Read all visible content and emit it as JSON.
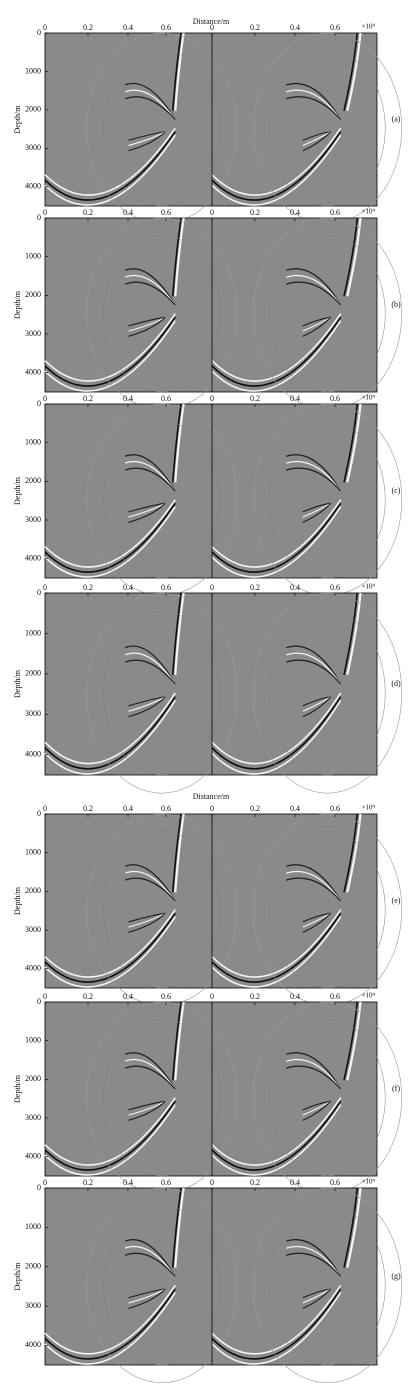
{
  "groups": [
    {
      "x_title": "Distance/m",
      "panels": [
        {
          "label": "(a)",
          "y_title": "Depth/m",
          "x_scale": "×10⁴",
          "x_ticks": [
            "0",
            "0.2",
            "0.4",
            "0.6",
            "0",
            "0.2",
            "0.4",
            "0.6"
          ],
          "y_ticks": [
            "0",
            "1000",
            "2000",
            "3000",
            "4000"
          ]
        },
        {
          "label": "(b)",
          "y_title": "Depth/m",
          "x_scale": "×10⁴",
          "x_ticks": [
            "0",
            "0.2",
            "0.4",
            "0.6",
            "0",
            "0.2",
            "0.4",
            "0.6"
          ],
          "y_ticks": [
            "0",
            "1000",
            "2000",
            "3000",
            "4000"
          ]
        },
        {
          "label": "(c)",
          "y_title": "Depth/m",
          "x_scale": "×10⁴",
          "x_ticks": [
            "0",
            "0.2",
            "0.4",
            "0.6",
            "0",
            "0.2",
            "0.4",
            "0.6"
          ],
          "y_ticks": [
            "0",
            "1000",
            "2000",
            "3000",
            "4000"
          ]
        },
        {
          "label": "(d)",
          "y_title": "Depth/m",
          "x_scale": "×10⁴",
          "x_ticks": [
            "0",
            "0.2",
            "0.4",
            "0.6",
            "0",
            "0.2",
            "0.4",
            "0.6"
          ],
          "y_ticks": [
            "0",
            "1000",
            "2000",
            "3000",
            "4000"
          ]
        }
      ]
    },
    {
      "x_title": "Distance/m",
      "panels": [
        {
          "label": "(e)",
          "y_title": "Depth/m",
          "x_scale": "×10⁴",
          "x_ticks": [
            "0",
            "0.2",
            "0.4",
            "0.6",
            "0",
            "0.2",
            "0.4",
            "0.6"
          ],
          "y_ticks": [
            "0",
            "1000",
            "2000",
            "3000",
            "4000"
          ]
        },
        {
          "label": "(f)",
          "y_title": "Depth/m",
          "x_scale": "×10⁴",
          "x_ticks": [
            "0",
            "0.2",
            "0.4",
            "0.6",
            "0",
            "0.2",
            "0.4",
            "0.6"
          ],
          "y_ticks": [
            "0",
            "1000",
            "2000",
            "3000",
            "4000"
          ]
        },
        {
          "label": "(g)",
          "y_title": "Depth/m",
          "x_scale": "×10⁴",
          "x_ticks": [
            "0",
            "0.2",
            "0.4",
            "0.6",
            "0",
            "0.2",
            "0.4",
            "0.6"
          ],
          "y_ticks": [
            "0",
            "1000",
            "2000",
            "3000",
            "4000"
          ]
        }
      ]
    }
  ]
}
